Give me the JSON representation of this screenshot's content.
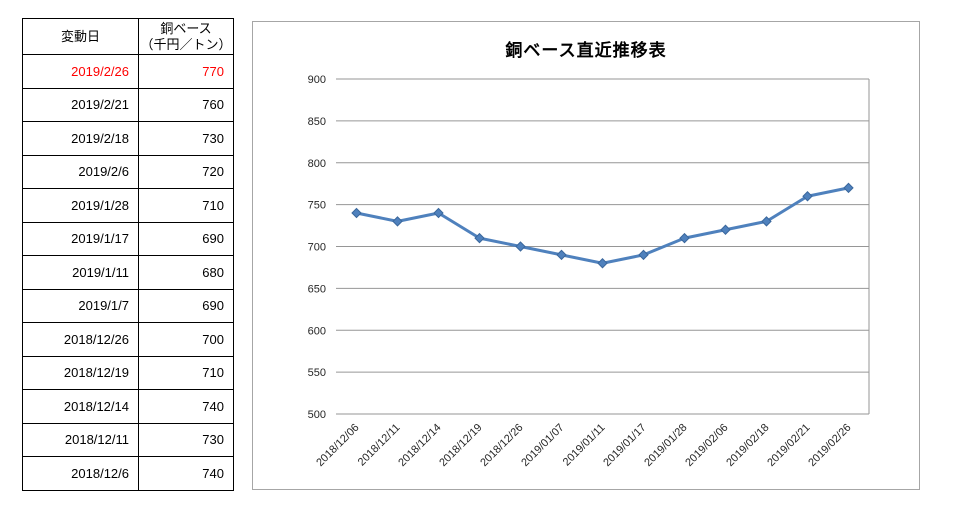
{
  "table": {
    "header": {
      "date_label": "変動日",
      "value_label_line1": "銅ベース",
      "value_label_line2": "（千円／トン）"
    },
    "rows": [
      {
        "date": "2019/2/26",
        "value": "770",
        "highlight": true
      },
      {
        "date": "2019/2/21",
        "value": "760",
        "highlight": false
      },
      {
        "date": "2019/2/18",
        "value": "730",
        "highlight": false
      },
      {
        "date": "2019/2/6",
        "value": "720",
        "highlight": false
      },
      {
        "date": "2019/1/28",
        "value": "710",
        "highlight": false
      },
      {
        "date": "2019/1/17",
        "value": "690",
        "highlight": false
      },
      {
        "date": "2019/1/11",
        "value": "680",
        "highlight": false
      },
      {
        "date": "2019/1/7",
        "value": "690",
        "highlight": false
      },
      {
        "date": "2018/12/26",
        "value": "700",
        "highlight": false
      },
      {
        "date": "2018/12/19",
        "value": "710",
        "highlight": false
      },
      {
        "date": "2018/12/14",
        "value": "740",
        "highlight": false
      },
      {
        "date": "2018/12/11",
        "value": "730",
        "highlight": false
      },
      {
        "date": "2018/12/6",
        "value": "740",
        "highlight": false
      }
    ]
  },
  "chart": {
    "title": "銅ベース直近推移表"
  },
  "chart_data": {
    "type": "line",
    "title": "銅ベース直近推移表",
    "categories": [
      "2018/12/06",
      "2018/12/11",
      "2018/12/14",
      "2018/12/19",
      "2018/12/26",
      "2019/01/07",
      "2019/01/11",
      "2019/01/17",
      "2019/01/28",
      "2019/02/06",
      "2019/02/18",
      "2019/02/21",
      "2019/02/26"
    ],
    "series": [
      {
        "name": "銅ベース（千円／トン）",
        "values": [
          740,
          730,
          740,
          710,
          700,
          690,
          680,
          690,
          710,
          720,
          730,
          760,
          770
        ]
      }
    ],
    "ylim": [
      500,
      900
    ],
    "ytick_step": 50,
    "grid": true,
    "legend_position": "none",
    "marker": "diamond"
  },
  "colors": {
    "highlight_red": "#ff0000",
    "series_blue": "#4f81bd",
    "series_blue_edge": "#3a679c",
    "grid_gray": "#969696",
    "frame_gray": "#a6a6a6",
    "axis_text": "#262626"
  }
}
